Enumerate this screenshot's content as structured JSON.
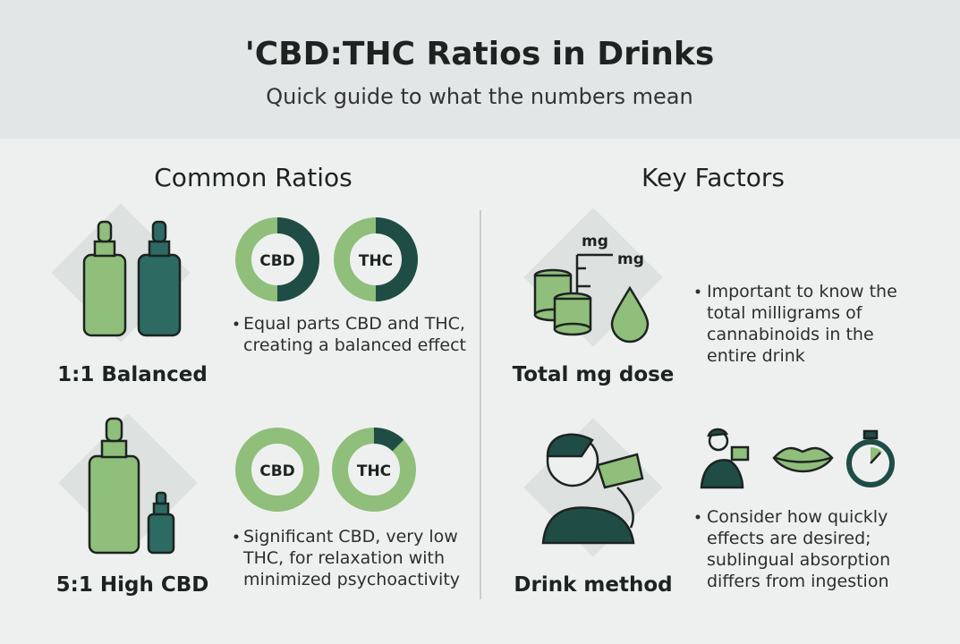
{
  "header": {
    "title": "'CBD:THC Ratios in Drinks",
    "subtitle": "Quick guide to what the numbers mean"
  },
  "ratios": {
    "heading": "Common Ratios",
    "items": [
      {
        "label": "1:1 Balanced",
        "donuts": [
          "CBD",
          "THC"
        ],
        "text": "Equal parts CBD and THC, creating a balanced effect"
      },
      {
        "label": "5:1 High CBD",
        "donuts": [
          "CBD",
          "THC"
        ],
        "text": "Significant CBD, very low THC, for relaxation with minimized psychoactivity"
      }
    ]
  },
  "factors": {
    "heading": "Key Factors",
    "items": [
      {
        "label": "Total mg dose",
        "icon_labels": [
          "mg",
          "mg"
        ],
        "text": "Important to know the total milligrams of cannabinoids in the entire drink"
      },
      {
        "label": "Drink method",
        "text": "Consider how quickly effects are desired; sublingual absorption differs from ingestion"
      }
    ]
  }
}
